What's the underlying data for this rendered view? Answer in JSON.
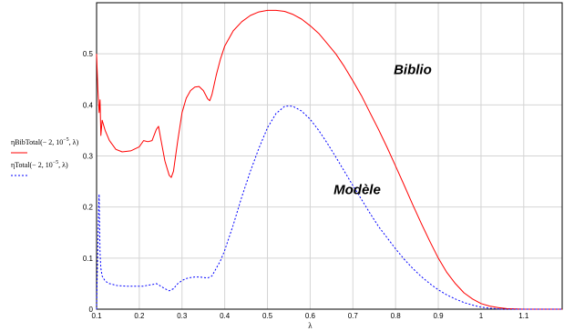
{
  "chart_data": {
    "type": "line",
    "xlabel": "λ",
    "ylabel": "",
    "xlim": [
      0.1,
      1.19
    ],
    "ylim": [
      0,
      0.6
    ],
    "grid": true,
    "xticks": [
      0.1,
      0.2,
      0.3,
      0.4,
      0.5,
      0.6,
      0.7,
      0.8,
      0.9,
      1,
      1.1
    ],
    "xtick_labels": [
      "0.1",
      "0.2",
      "0.3",
      "0.4",
      "0.5",
      "0.6",
      "0.7",
      "0.8",
      "0.9",
      "1",
      "1.1"
    ],
    "yticks": [
      0,
      0.1,
      0.2,
      0.3,
      0.4,
      0.5
    ],
    "ytick_labels": [
      "0",
      "0.1",
      "0.2",
      "0.3",
      "0.4",
      "0.5"
    ],
    "legend_position": "left",
    "legend_entries": [
      {
        "prefix": "ηBibTotal",
        "args": "(− 2, 10",
        "exp": "−5",
        "tail": ", λ)"
      },
      {
        "prefix": "ηTotal",
        "args": "(− 2, 10",
        "exp": "−5",
        "tail": ", λ)"
      }
    ],
    "annotations": [
      {
        "text": "Biblio",
        "x": 0.84,
        "y": 0.46
      },
      {
        "text": "Modèle",
        "x": 0.71,
        "y": 0.225
      }
    ],
    "series": [
      {
        "name": "ηBibTotal(− 2, 10−5, λ)",
        "color": "#ff0000",
        "dash": "solid",
        "points": [
          [
            0.1,
            0.5
          ],
          [
            0.103,
            0.43
          ],
          [
            0.106,
            0.385
          ],
          [
            0.108,
            0.41
          ],
          [
            0.11,
            0.34
          ],
          [
            0.113,
            0.37
          ],
          [
            0.12,
            0.35
          ],
          [
            0.13,
            0.33
          ],
          [
            0.145,
            0.313
          ],
          [
            0.16,
            0.308
          ],
          [
            0.18,
            0.31
          ],
          [
            0.2,
            0.318
          ],
          [
            0.21,
            0.33
          ],
          [
            0.22,
            0.328
          ],
          [
            0.23,
            0.33
          ],
          [
            0.24,
            0.352
          ],
          [
            0.245,
            0.358
          ],
          [
            0.25,
            0.335
          ],
          [
            0.26,
            0.29
          ],
          [
            0.27,
            0.262
          ],
          [
            0.275,
            0.258
          ],
          [
            0.28,
            0.27
          ],
          [
            0.29,
            0.33
          ],
          [
            0.3,
            0.385
          ],
          [
            0.31,
            0.413
          ],
          [
            0.32,
            0.428
          ],
          [
            0.33,
            0.435
          ],
          [
            0.34,
            0.436
          ],
          [
            0.35,
            0.428
          ],
          [
            0.36,
            0.412
          ],
          [
            0.365,
            0.408
          ],
          [
            0.37,
            0.42
          ],
          [
            0.38,
            0.458
          ],
          [
            0.39,
            0.49
          ],
          [
            0.4,
            0.515
          ],
          [
            0.42,
            0.545
          ],
          [
            0.44,
            0.563
          ],
          [
            0.46,
            0.575
          ],
          [
            0.48,
            0.582
          ],
          [
            0.5,
            0.585
          ],
          [
            0.52,
            0.585
          ],
          [
            0.54,
            0.583
          ],
          [
            0.56,
            0.577
          ],
          [
            0.58,
            0.568
          ],
          [
            0.6,
            0.555
          ],
          [
            0.62,
            0.54
          ],
          [
            0.64,
            0.52
          ],
          [
            0.66,
            0.5
          ],
          [
            0.68,
            0.475
          ],
          [
            0.7,
            0.447
          ],
          [
            0.72,
            0.418
          ],
          [
            0.74,
            0.385
          ],
          [
            0.76,
            0.352
          ],
          [
            0.78,
            0.317
          ],
          [
            0.8,
            0.28
          ],
          [
            0.82,
            0.243
          ],
          [
            0.84,
            0.205
          ],
          [
            0.86,
            0.168
          ],
          [
            0.88,
            0.133
          ],
          [
            0.9,
            0.1
          ],
          [
            0.92,
            0.072
          ],
          [
            0.94,
            0.05
          ],
          [
            0.96,
            0.032
          ],
          [
            0.98,
            0.02
          ],
          [
            1.0,
            0.011
          ],
          [
            1.02,
            0.006
          ],
          [
            1.04,
            0.003
          ],
          [
            1.06,
            0.001
          ],
          [
            1.1,
            0.0
          ],
          [
            1.19,
            0.0
          ]
        ]
      },
      {
        "name": "ηTotal(− 2, 10−5, λ)",
        "color": "#0000ff",
        "dash": "dotted",
        "points": [
          [
            0.1,
            0.0
          ],
          [
            0.101,
            0.05
          ],
          [
            0.103,
            0.12
          ],
          [
            0.105,
            0.2
          ],
          [
            0.106,
            0.225
          ],
          [
            0.107,
            0.16
          ],
          [
            0.108,
            0.11
          ],
          [
            0.11,
            0.08
          ],
          [
            0.113,
            0.065
          ],
          [
            0.12,
            0.055
          ],
          [
            0.13,
            0.05
          ],
          [
            0.15,
            0.046
          ],
          [
            0.17,
            0.045
          ],
          [
            0.19,
            0.045
          ],
          [
            0.21,
            0.045
          ],
          [
            0.22,
            0.047
          ],
          [
            0.23,
            0.048
          ],
          [
            0.24,
            0.05
          ],
          [
            0.245,
            0.048
          ],
          [
            0.25,
            0.045
          ],
          [
            0.26,
            0.04
          ],
          [
            0.27,
            0.036
          ],
          [
            0.28,
            0.04
          ],
          [
            0.29,
            0.05
          ],
          [
            0.3,
            0.056
          ],
          [
            0.31,
            0.06
          ],
          [
            0.32,
            0.062
          ],
          [
            0.33,
            0.063
          ],
          [
            0.34,
            0.063
          ],
          [
            0.35,
            0.062
          ],
          [
            0.36,
            0.061
          ],
          [
            0.37,
            0.065
          ],
          [
            0.38,
            0.08
          ],
          [
            0.39,
            0.095
          ],
          [
            0.4,
            0.115
          ],
          [
            0.42,
            0.165
          ],
          [
            0.44,
            0.22
          ],
          [
            0.46,
            0.27
          ],
          [
            0.48,
            0.315
          ],
          [
            0.5,
            0.355
          ],
          [
            0.52,
            0.383
          ],
          [
            0.54,
            0.397
          ],
          [
            0.55,
            0.398
          ],
          [
            0.56,
            0.397
          ],
          [
            0.58,
            0.388
          ],
          [
            0.6,
            0.372
          ],
          [
            0.62,
            0.35
          ],
          [
            0.64,
            0.325
          ],
          [
            0.66,
            0.298
          ],
          [
            0.68,
            0.27
          ],
          [
            0.7,
            0.242
          ],
          [
            0.72,
            0.215
          ],
          [
            0.74,
            0.188
          ],
          [
            0.76,
            0.162
          ],
          [
            0.78,
            0.14
          ],
          [
            0.8,
            0.118
          ],
          [
            0.82,
            0.098
          ],
          [
            0.84,
            0.08
          ],
          [
            0.86,
            0.064
          ],
          [
            0.88,
            0.05
          ],
          [
            0.9,
            0.038
          ],
          [
            0.92,
            0.028
          ],
          [
            0.94,
            0.02
          ],
          [
            0.96,
            0.013
          ],
          [
            0.98,
            0.008
          ],
          [
            1.0,
            0.004
          ],
          [
            1.02,
            0.002
          ],
          [
            1.05,
            0.0
          ],
          [
            1.19,
            0.0
          ]
        ]
      }
    ]
  }
}
